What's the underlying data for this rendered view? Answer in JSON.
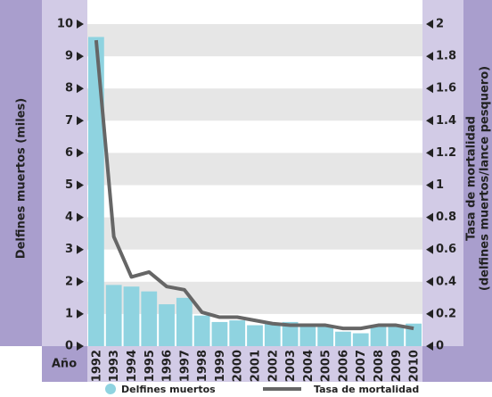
{
  "chart_data": {
    "type": "bar_line",
    "y_label": "Delfines muertos (miles)",
    "y2_label": [
      "Tasa de mortalidad",
      "(delfines muertos/lance pesquero)"
    ],
    "x_label": "Año",
    "categories": [
      "1992",
      "1993",
      "1994",
      "1995",
      "1996",
      "1997",
      "1998",
      "1999",
      "2000",
      "2001",
      "2002",
      "2003",
      "2004",
      "2005",
      "2006",
      "2007",
      "2008",
      "2009",
      "2010"
    ],
    "series": [
      {
        "name": "Delfines muertos",
        "color": "#8fd3e0",
        "values": [
          9.6,
          1.9,
          1.85,
          1.7,
          1.3,
          1.5,
          0.95,
          0.75,
          0.8,
          0.65,
          0.7,
          0.75,
          0.65,
          0.6,
          0.45,
          0.4,
          0.6,
          0.6,
          0.7
        ]
      },
      {
        "name": "Tasa de mortalidad",
        "color": "#666666",
        "axis": "y2",
        "values": [
          1.9,
          0.68,
          0.43,
          0.46,
          0.37,
          0.35,
          0.21,
          0.18,
          0.18,
          0.16,
          0.14,
          0.13,
          0.13,
          0.13,
          0.11,
          0.11,
          0.13,
          0.13,
          0.11
        ]
      }
    ],
    "ylim": [
      0,
      10
    ],
    "yticks": [
      0,
      1,
      2,
      3,
      4,
      5,
      6,
      7,
      8,
      9,
      10
    ],
    "y2lim": [
      0,
      2
    ],
    "y2ticks": [
      0,
      0.2,
      0.4,
      0.6,
      0.8,
      1,
      1.2,
      1.4,
      1.6,
      1.8,
      2
    ],
    "grid": true
  }
}
